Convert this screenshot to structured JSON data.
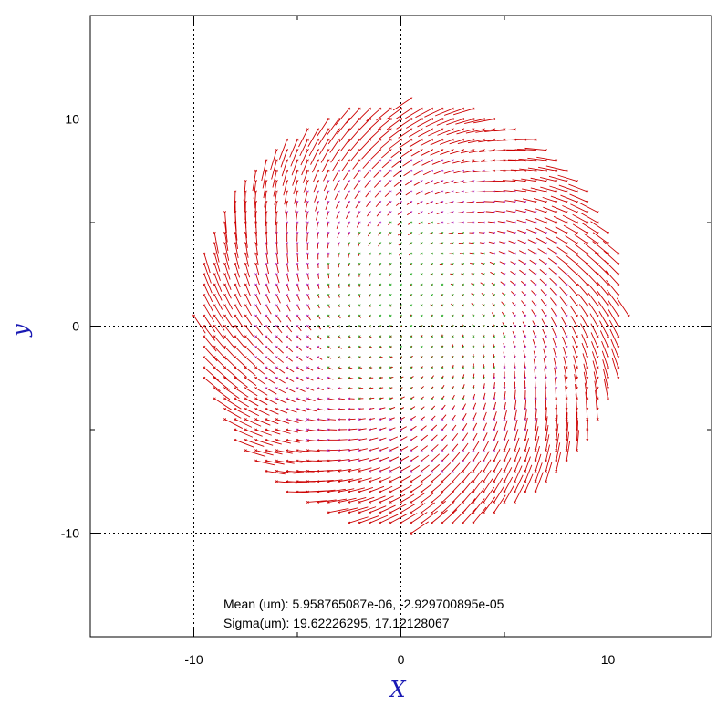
{
  "chart_data": {
    "type": "vector-field",
    "xlabel": "X",
    "ylabel": "y",
    "xlim": [
      -15,
      15
    ],
    "ylim": [
      -15,
      15
    ],
    "xticks": [
      -10,
      0,
      10
    ],
    "yticks": [
      -10,
      0,
      10
    ],
    "x_tick_labels": [
      "-10",
      "0",
      "10"
    ],
    "y_tick_labels": [
      "-10",
      "0",
      "10"
    ],
    "grid": true,
    "grid_style": "dotted",
    "field": {
      "grid_spacing": 0.5,
      "radius": 10.5,
      "center": [
        0.5,
        0.5
      ]
    },
    "colors": {
      "vector": "#cc0000",
      "marker_small": "#22aa22",
      "marker_large": "#aa22cc",
      "axis_title": "#1a1ab4",
      "grid": "#000000"
    },
    "annotations": {
      "mean": "Mean (um): 5.958765087e-06, -2.929700895e-05",
      "sigma": "Sigma(um): 19.62226295, 17.12128067"
    }
  }
}
